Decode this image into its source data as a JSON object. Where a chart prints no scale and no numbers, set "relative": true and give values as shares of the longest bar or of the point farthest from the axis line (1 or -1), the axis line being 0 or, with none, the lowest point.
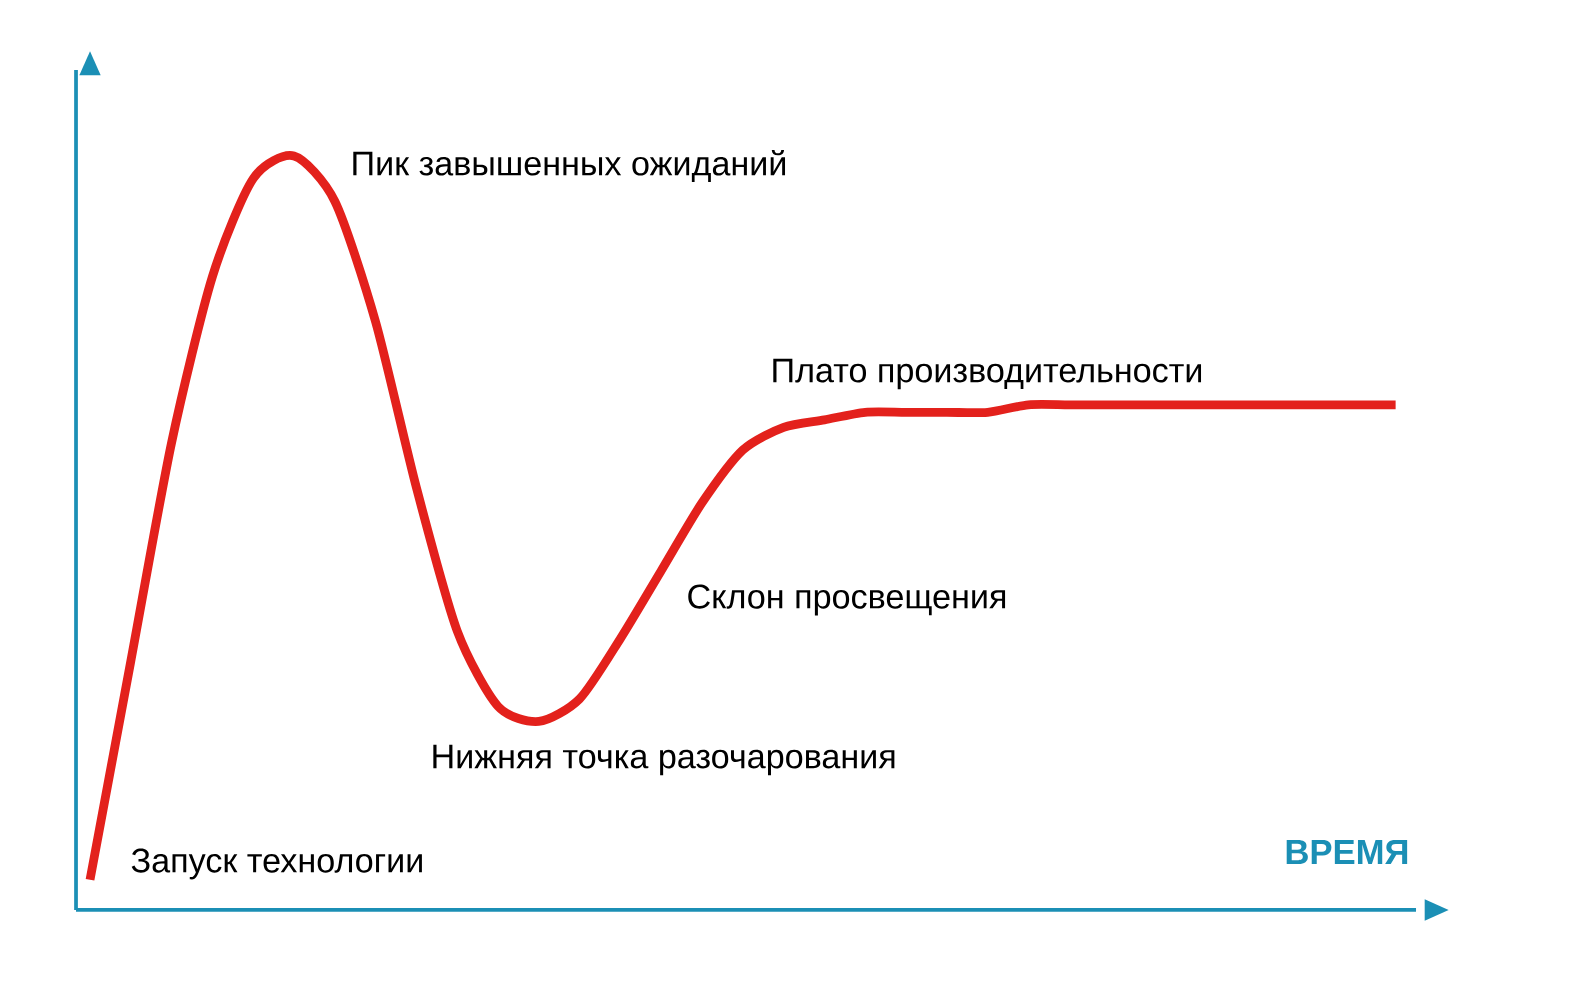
{
  "chart_data": {
    "type": "line",
    "relative": true,
    "xlabel": "ВРЕМЯ",
    "categories": [
      null,
      null,
      null,
      null,
      null,
      null,
      null,
      null,
      null,
      null,
      null,
      null,
      null,
      null,
      null,
      null,
      null,
      null,
      null,
      null,
      null,
      null,
      null,
      null,
      null,
      null,
      null,
      null,
      null,
      null,
      null,
      null,
      null
    ],
    "series": [
      {
        "color": "#e3211c",
        "values": [
          0.04,
          0.33,
          0.62,
          0.84,
          0.97,
          1.0,
          0.94,
          0.78,
          0.56,
          0.37,
          0.27,
          0.25,
          0.28,
          0.36,
          0.45,
          0.54,
          0.61,
          0.64,
          0.65,
          0.66,
          0.66,
          0.66,
          0.66,
          0.67,
          0.67,
          0.67,
          0.67,
          0.67,
          0.67,
          0.67,
          0.67,
          0.67,
          0.67
        ]
      }
    ],
    "annotations": [
      "Пик завышенных ожиданий",
      "Плато производительности",
      "Склон просвещения",
      "Нижняя точка разочарования",
      "Запуск технологии"
    ],
    "marker": "none",
    "line_style": "solid"
  }
}
